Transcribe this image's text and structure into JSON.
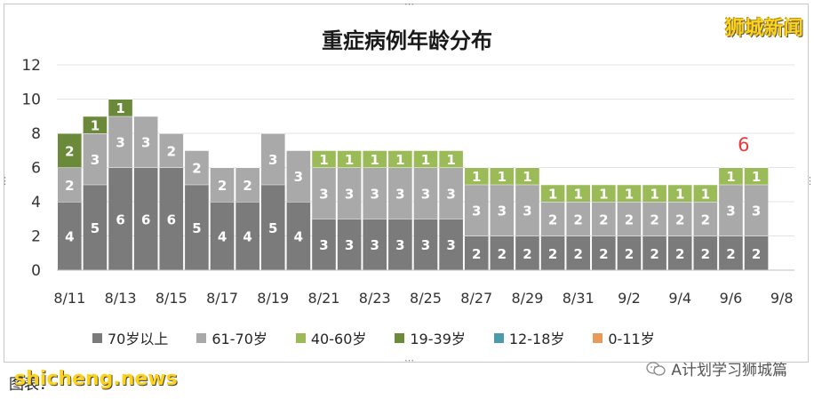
{
  "chart_data": {
    "type": "bar",
    "stacked": true,
    "title": "重症病例年龄分布",
    "ylim": [
      0,
      12
    ],
    "yticks": [
      0,
      2,
      4,
      6,
      8,
      10,
      12
    ],
    "grid": true,
    "legend_position": "bottom",
    "x_tick_labels": [
      "8/11",
      "8/13",
      "8/15",
      "8/17",
      "8/19",
      "8/21",
      "8/23",
      "8/25",
      "8/27",
      "8/29",
      "8/31",
      "9/2",
      "9/4",
      "9/6",
      "9/8"
    ],
    "categories": [
      "8/11",
      "8/12",
      "8/13",
      "8/14",
      "8/15",
      "8/16",
      "8/17",
      "8/18",
      "8/19",
      "8/20",
      "8/21",
      "8/22",
      "8/23",
      "8/24",
      "8/25",
      "8/26",
      "8/27",
      "8/28",
      "8/29",
      "8/30",
      "8/31",
      "9/1",
      "9/2",
      "9/3",
      "9/4",
      "9/5",
      "9/6",
      "9/7",
      "9/8"
    ],
    "series": [
      {
        "name": "70岁以上",
        "color": "#7b7b7b",
        "values": [
          4,
          5,
          6,
          6,
          6,
          5,
          4,
          4,
          5,
          4,
          3,
          3,
          3,
          3,
          3,
          3,
          2,
          2,
          2,
          2,
          2,
          2,
          2,
          2,
          2,
          2,
          2,
          2,
          0
        ]
      },
      {
        "name": "61-70岁",
        "color": "#a9a9a9",
        "values": [
          2,
          3,
          3,
          3,
          2,
          2,
          2,
          2,
          3,
          3,
          3,
          3,
          3,
          3,
          3,
          3,
          3,
          3,
          3,
          2,
          2,
          2,
          2,
          2,
          2,
          2,
          3,
          3,
          0
        ]
      },
      {
        "name": "40-60岁",
        "color": "#9bbb59",
        "values": [
          0,
          0,
          0,
          0,
          0,
          0,
          0,
          0,
          0,
          0,
          1,
          1,
          1,
          1,
          1,
          1,
          1,
          1,
          1,
          1,
          1,
          1,
          1,
          1,
          1,
          1,
          1,
          1,
          0
        ]
      },
      {
        "name": "19-39岁",
        "color": "#6a8a3a",
        "values": [
          2,
          1,
          1,
          0,
          0,
          0,
          0,
          0,
          0,
          0,
          0,
          0,
          0,
          0,
          0,
          0,
          0,
          0,
          0,
          0,
          0,
          0,
          0,
          0,
          0,
          0,
          0,
          0,
          0
        ]
      },
      {
        "name": "12-18岁",
        "color": "#4b9bab",
        "values": [
          0,
          0,
          0,
          0,
          0,
          0,
          0,
          0,
          0,
          0,
          0,
          0,
          0,
          0,
          0,
          0,
          0,
          0,
          0,
          0,
          0,
          0,
          0,
          0,
          0,
          0,
          0,
          0,
          0
        ]
      },
      {
        "name": "0-11岁",
        "color": "#e89a5a",
        "values": [
          0,
          0,
          0,
          0,
          0,
          0,
          0,
          0,
          0,
          0,
          0,
          0,
          0,
          0,
          0,
          0,
          0,
          0,
          0,
          0,
          0,
          0,
          0,
          0,
          0,
          0,
          0,
          0,
          0
        ]
      }
    ],
    "annotation": {
      "text": "6",
      "category": "9/6",
      "color": "#e83a3a"
    }
  },
  "watermark_top": "狮城新闻",
  "footer": {
    "left_text": "图表：",
    "watermark": "shicheng.news",
    "right_text": "A计划学习狮城篇"
  },
  "icons": {
    "wechat": "wechat-icon"
  }
}
